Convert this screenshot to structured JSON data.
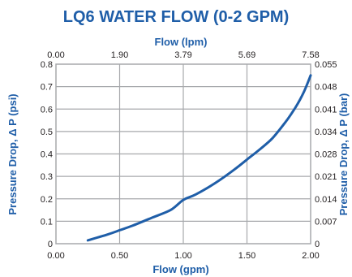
{
  "chart_data": {
    "type": "line",
    "title": "LQ6 WATER FLOW (0-2 GPM)",
    "xlabel": "Flow (gpm)",
    "x2label": "Flow (lpm)",
    "ylabel": "Pressure Drop, Δ P (psi)",
    "y2label": "Pressure Drop, Δ P (bar)",
    "xlim": [
      0,
      2
    ],
    "ylim": [
      0,
      0.8
    ],
    "x_ticks": [
      "0.00",
      "0.50",
      "1.00",
      "1.50",
      "2.00"
    ],
    "x2_ticks": [
      "0.00",
      "1.90",
      "3.79",
      "5.69",
      "7.58"
    ],
    "y_ticks": [
      "0",
      "0.1",
      "0.2",
      "0.3",
      "0.4",
      "0.5",
      "0.6",
      "0.7",
      "0.8"
    ],
    "y2_ticks": [
      "0",
      "0.007",
      "0.014",
      "0.021",
      "0.028",
      "0.034",
      "0.041",
      "0.048",
      "0.055"
    ],
    "grid": true,
    "series": [
      {
        "color": "#1f5ea8",
        "x": [
          0.25,
          0.4,
          0.5,
          0.6,
          0.75,
          0.9,
          1.0,
          1.1,
          1.25,
          1.4,
          1.5,
          1.6,
          1.7,
          1.8,
          1.85,
          1.9,
          1.95,
          2.0
        ],
        "y": [
          0.015,
          0.04,
          0.06,
          0.08,
          0.115,
          0.15,
          0.195,
          0.22,
          0.27,
          0.33,
          0.375,
          0.42,
          0.47,
          0.54,
          0.58,
          0.625,
          0.68,
          0.75
        ]
      }
    ]
  },
  "colors": {
    "title": "#1f5ea8",
    "axis_title": "#1f5ea8",
    "line": "#1f5ea8",
    "grid": "#a7a9ac",
    "text": "#231f20"
  }
}
